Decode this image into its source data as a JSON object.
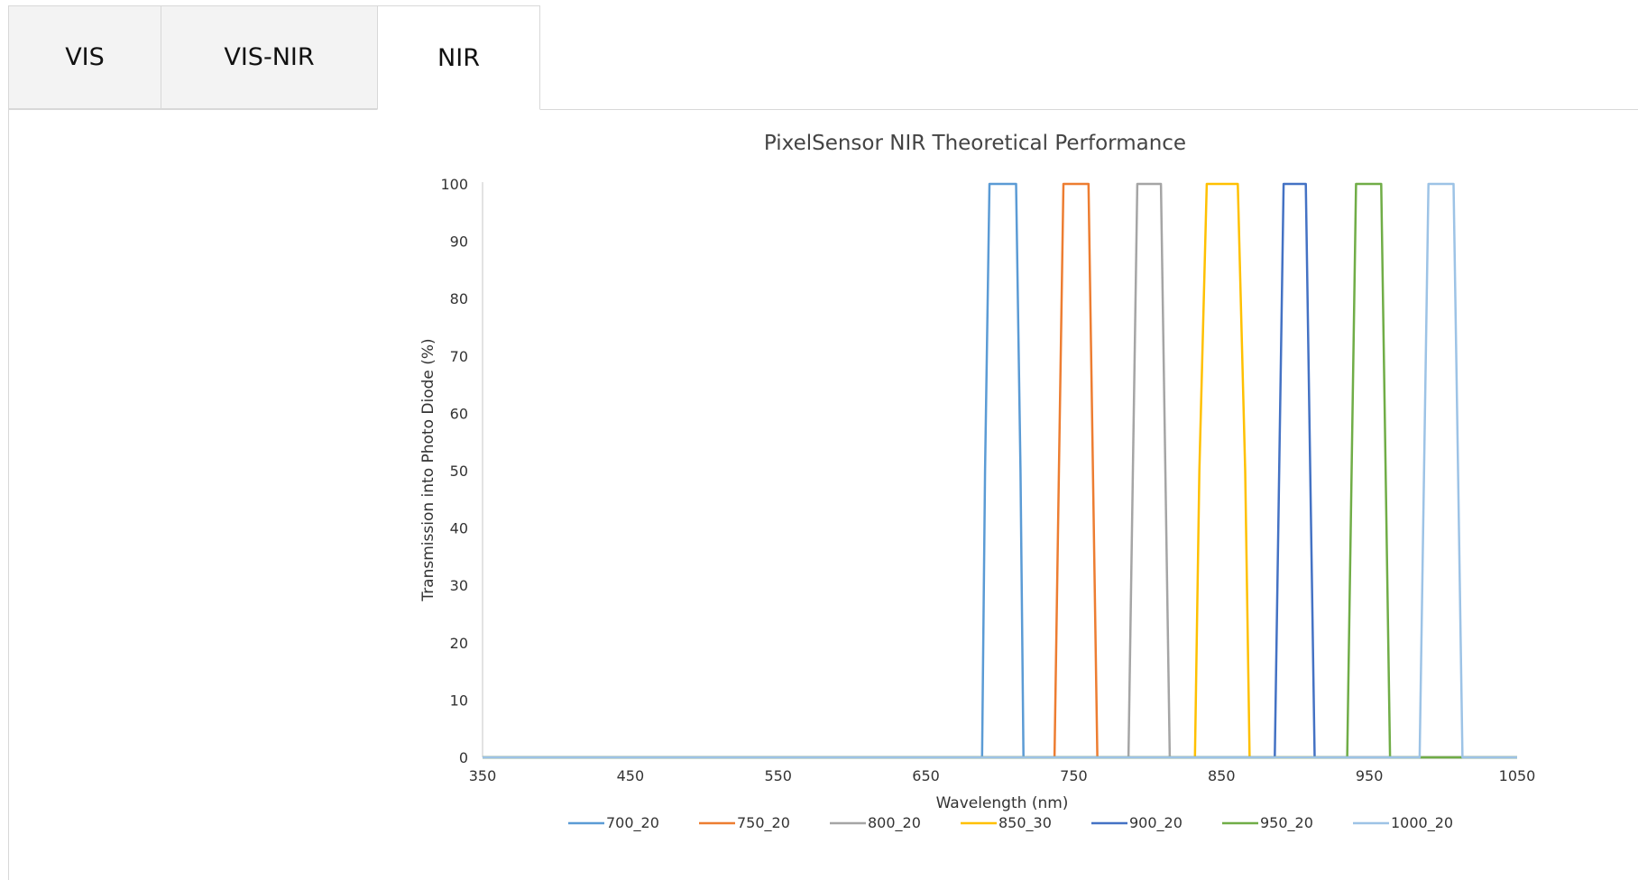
{
  "tabs": [
    {
      "label": "VIS",
      "active": false
    },
    {
      "label": "VIS-NIR",
      "active": false
    },
    {
      "label": "NIR",
      "active": true
    }
  ],
  "chart_data": {
    "type": "line",
    "title": "PixelSensor NIR Theoretical Performance",
    "xlabel": "Wavelength (nm)",
    "ylabel": "Transmission into Photo Diode (%)",
    "xlim": [
      350,
      1050
    ],
    "ylim": [
      0,
      100
    ],
    "xticks": [
      350,
      450,
      550,
      650,
      750,
      850,
      950,
      1050
    ],
    "yticks": [
      0,
      10,
      20,
      30,
      40,
      50,
      60,
      70,
      80,
      90,
      100
    ],
    "grid": false,
    "legend_position": "bottom",
    "series": [
      {
        "name": "700_20",
        "color": "#5b9bd5",
        "x": [
          350,
          688,
          690,
          693,
          711,
          714,
          716,
          1050
        ],
        "y": [
          0,
          0,
          50,
          100,
          100,
          50,
          0,
          0
        ]
      },
      {
        "name": "750_20",
        "color": "#ed7d31",
        "x": [
          350,
          737,
          740,
          743,
          760,
          763,
          766,
          1050
        ],
        "y": [
          0,
          0,
          50,
          100,
          100,
          50,
          0,
          0
        ]
      },
      {
        "name": "800_20",
        "color": "#a5a5a5",
        "x": [
          350,
          787,
          790,
          793,
          809,
          812,
          815,
          1050
        ],
        "y": [
          0,
          0,
          50,
          100,
          100,
          50,
          0,
          0
        ]
      },
      {
        "name": "850_30",
        "color": "#ffc000",
        "x": [
          350,
          832,
          835,
          840,
          861,
          866,
          869,
          1050
        ],
        "y": [
          0,
          0,
          50,
          100,
          100,
          50,
          0,
          0
        ]
      },
      {
        "name": "900_20",
        "color": "#4472c4",
        "x": [
          350,
          886,
          889,
          892,
          907,
          910,
          913,
          1050
        ],
        "y": [
          0,
          0,
          50,
          100,
          100,
          50,
          0,
          0
        ]
      },
      {
        "name": "950_20",
        "color": "#70ad47",
        "x": [
          350,
          935,
          938,
          941,
          958,
          961,
          964,
          1050
        ],
        "y": [
          0,
          0,
          50,
          100,
          100,
          50,
          0,
          0
        ]
      },
      {
        "name": "1000_20",
        "color": "#9dc3e6",
        "x": [
          350,
          984,
          987,
          990,
          1007,
          1010,
          1013,
          1050
        ],
        "y": [
          0,
          0,
          50,
          100,
          100,
          50,
          0,
          0
        ]
      }
    ]
  }
}
